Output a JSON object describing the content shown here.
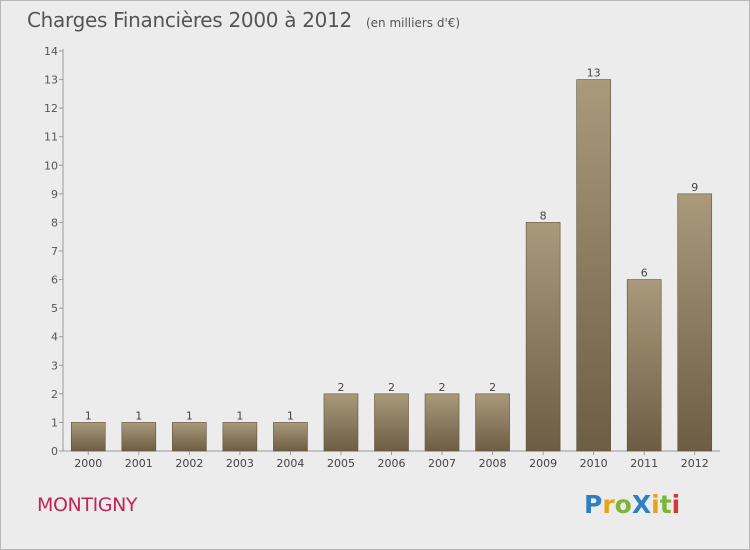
{
  "title": "Charges Financières 2000 à 2012",
  "unit": "(en milliers d'€)",
  "commune": "MONTIGNY",
  "logo": {
    "text": "ProXiti",
    "letters": [
      {
        "ch": "P",
        "color": "#2f7fc1"
      },
      {
        "ch": "r",
        "color": "#e8a21a"
      },
      {
        "ch": "o",
        "color": "#7cb53a"
      },
      {
        "ch": "X",
        "color": "#2f7fc1"
      },
      {
        "ch": "i",
        "color": "#e8a21a"
      },
      {
        "ch": "t",
        "color": "#7cb53a"
      },
      {
        "ch": "i",
        "color": "#d9343b"
      }
    ]
  },
  "colors": {
    "bar_top": "#a99a7c",
    "bar_bottom": "#6d5d44",
    "background": "#ececec",
    "commune": "#c0245b"
  },
  "chart_data": {
    "type": "bar",
    "categories": [
      "2000",
      "2001",
      "2002",
      "2003",
      "2004",
      "2005",
      "2006",
      "2007",
      "2008",
      "2009",
      "2010",
      "2011",
      "2012"
    ],
    "values": [
      1,
      1,
      1,
      1,
      1,
      2,
      2,
      2,
      2,
      8,
      13,
      6,
      9
    ],
    "value_labels": [
      "1",
      "1",
      "1",
      "1",
      "1",
      "2",
      "2",
      "2",
      "2",
      "8",
      "13",
      "6",
      "9"
    ],
    "title": "Charges Financières 2000 à 2012",
    "xlabel": "",
    "ylabel": "",
    "ylim": [
      0,
      14
    ],
    "yticks": [
      "0",
      "1",
      "2",
      "3",
      "4",
      "5",
      "6",
      "7",
      "8",
      "9",
      "10",
      "11",
      "12",
      "13",
      "14"
    ],
    "grid": false,
    "legend": "none"
  }
}
